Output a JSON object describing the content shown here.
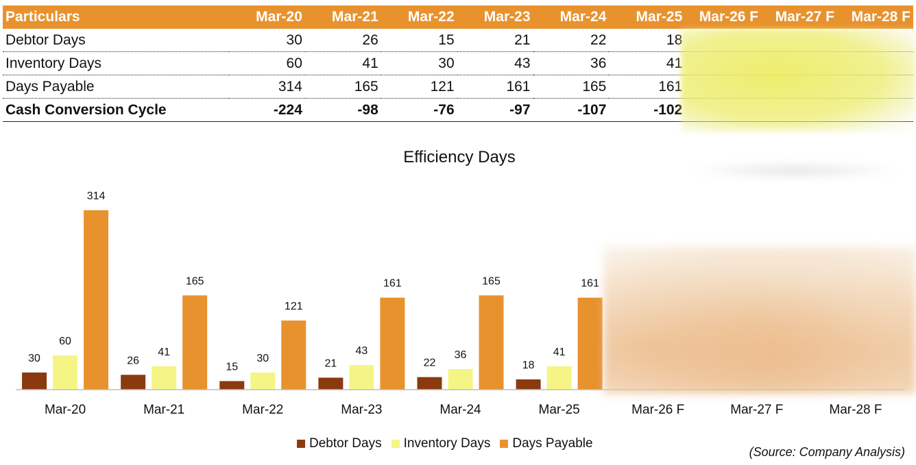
{
  "table": {
    "header": [
      "Particulars",
      "Mar-20",
      "Mar-21",
      "Mar-22",
      "Mar-23",
      "Mar-24",
      "Mar-25",
      "Mar-26 F",
      "Mar-27 F",
      "Mar-28 F"
    ],
    "rows": [
      [
        "Debtor Days",
        "30",
        "26",
        "15",
        "21",
        "22",
        "18",
        "",
        "",
        ""
      ],
      [
        "Inventory Days",
        "60",
        "41",
        "30",
        "43",
        "36",
        "41",
        "",
        "",
        ""
      ],
      [
        "Days Payable",
        "314",
        "165",
        "121",
        "161",
        "165",
        "161",
        "",
        "",
        ""
      ],
      [
        "Cash Conversion Cycle",
        "-224",
        "-98",
        "-76",
        "-97",
        "-107",
        "-102",
        "",
        "",
        ""
      ]
    ]
  },
  "chart_data": {
    "type": "bar",
    "title": "Efficiency Days",
    "categories": [
      "Mar-20",
      "Mar-21",
      "Mar-22",
      "Mar-23",
      "Mar-24",
      "Mar-25",
      "Mar-26 F",
      "Mar-27 F",
      "Mar-28 F"
    ],
    "series": [
      {
        "name": "Debtor Days",
        "color": "#8b3a0f",
        "values": [
          30,
          26,
          15,
          21,
          22,
          18,
          null,
          null,
          null
        ]
      },
      {
        "name": "Inventory Days",
        "color": "#f5f585",
        "values": [
          60,
          41,
          30,
          43,
          36,
          41,
          null,
          null,
          null
        ]
      },
      {
        "name": "Days Payable",
        "color": "#e8922e",
        "values": [
          314,
          165,
          121,
          161,
          165,
          161,
          null,
          null,
          null
        ]
      }
    ],
    "ylim": [
      0,
      320
    ],
    "grid": false,
    "legend": "bottom-center"
  },
  "source": "(Source: Company Analysis)"
}
